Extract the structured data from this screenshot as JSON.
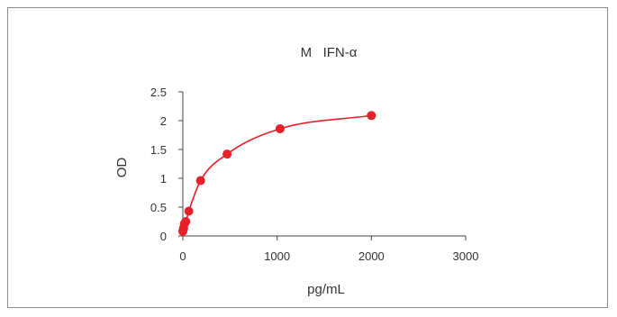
{
  "chart_data": {
    "type": "scatter",
    "title": "M   IFN-α",
    "xlabel": "pg/mL",
    "ylabel": "OD",
    "xlim": [
      0,
      3000
    ],
    "ylim": [
      0,
      2.5
    ],
    "x_ticks": [
      "0",
      "1000",
      "2000",
      "3000"
    ],
    "y_ticks": [
      "0",
      "0.5",
      "1",
      "1.5",
      "2",
      "2.5"
    ],
    "grid": false,
    "legend": "none",
    "series": [
      {
        "color": "#e8202a",
        "x": [
          0,
          4,
          8,
          16,
          31,
          63,
          188,
          469,
          1031,
          2000
        ],
        "y": [
          0.08,
          0.11,
          0.14,
          0.21,
          0.25,
          0.43,
          0.96,
          1.42,
          1.86,
          2.09
        ],
        "fit_curve": true
      }
    ]
  }
}
